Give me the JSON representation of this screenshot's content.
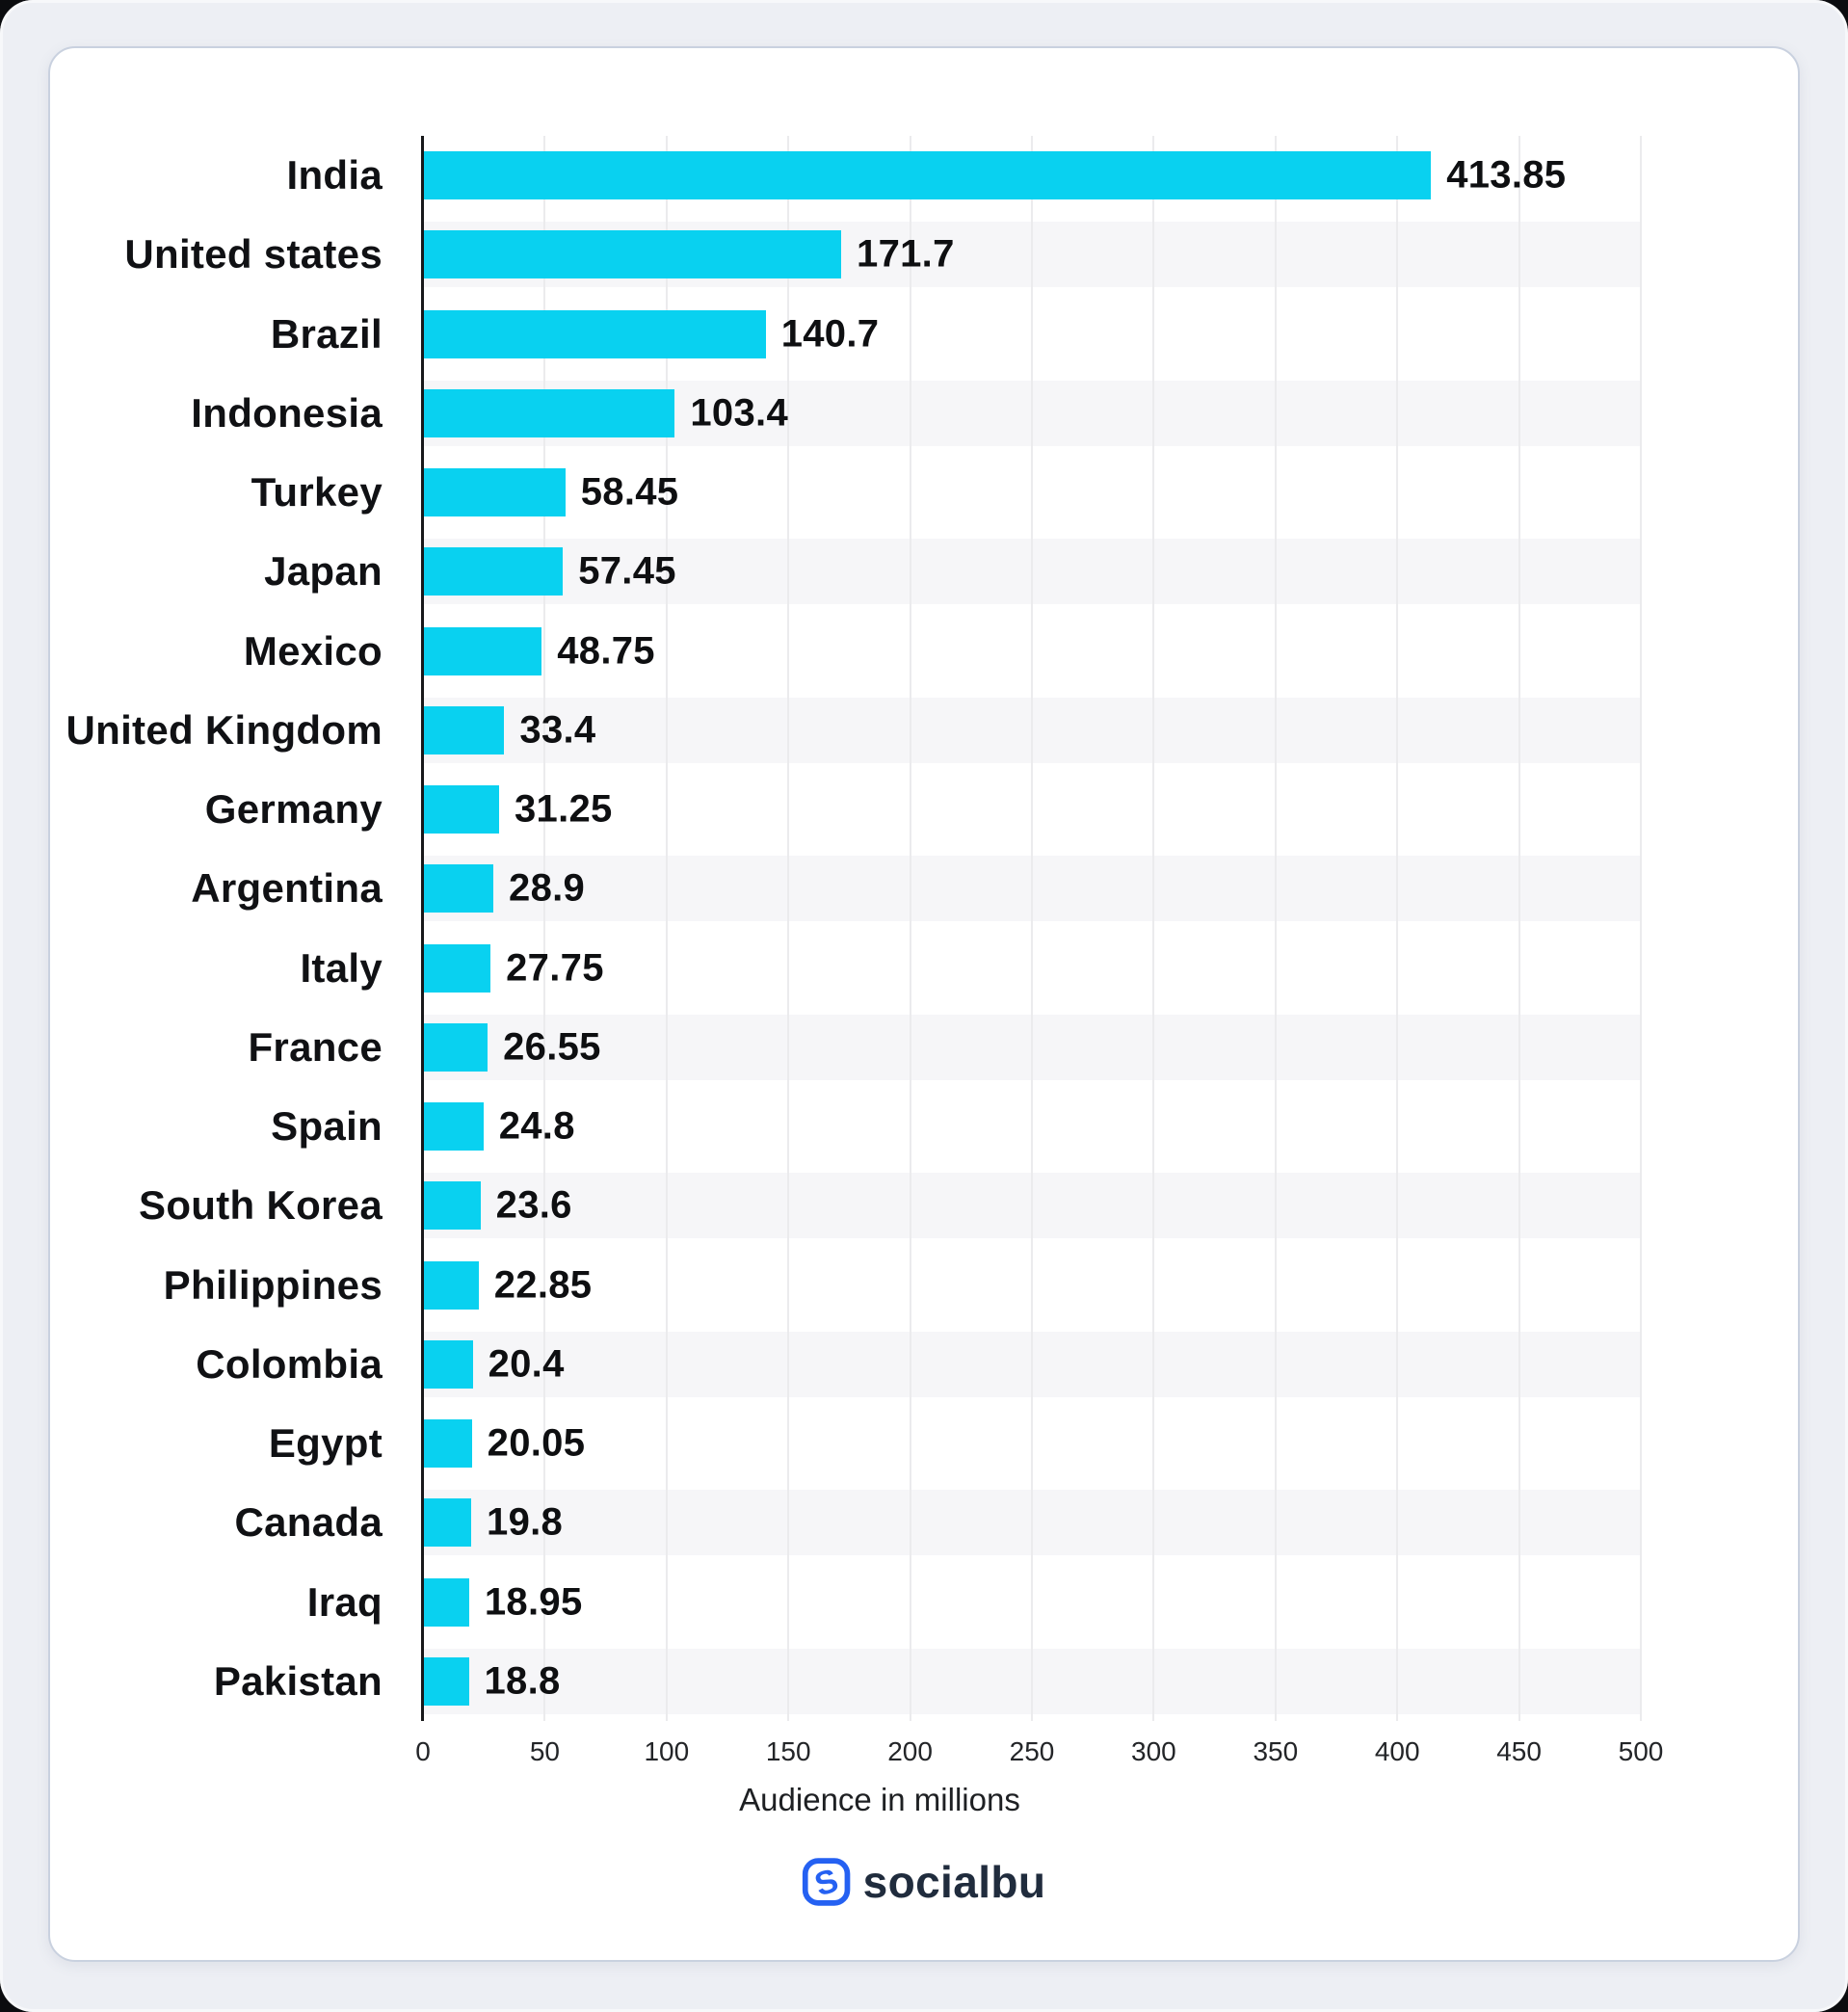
{
  "chart_data": {
    "type": "bar",
    "orientation": "horizontal",
    "categories": [
      "India",
      "United states",
      "Brazil",
      "Indonesia",
      "Turkey",
      "Japan",
      "Mexico",
      "United Kingdom",
      "Germany",
      "Argentina",
      "Italy",
      "France",
      "Spain",
      "South Korea",
      "Philippines",
      "Colombia",
      "Egypt",
      "Canada",
      "Iraq",
      "Pakistan"
    ],
    "values": [
      413.85,
      171.7,
      140.7,
      103.4,
      58.45,
      57.45,
      48.75,
      33.4,
      31.25,
      28.9,
      27.75,
      26.55,
      24.8,
      23.6,
      22.85,
      20.4,
      20.05,
      19.8,
      18.95,
      18.8
    ],
    "title": "",
    "xlabel": "Audience in millions",
    "ylabel": "",
    "xlim": [
      0,
      500
    ],
    "x_ticks": [
      0,
      50,
      100,
      150,
      200,
      250,
      300,
      350,
      400,
      450,
      500
    ],
    "grid": true,
    "legend": "none",
    "value_labels": "outside-end",
    "bar_color": "#09d1f0",
    "stripe_color": "#f6f6f8",
    "gridline_color": "#ebebed",
    "axis_line_color": "#17181a"
  },
  "footer": {
    "logo_text": "socialbu",
    "logo_blue": "#2561f2",
    "logo_text_color": "#202c3d"
  },
  "page": {
    "outer_background": "#edeff4",
    "card_background": "#ffffff"
  }
}
